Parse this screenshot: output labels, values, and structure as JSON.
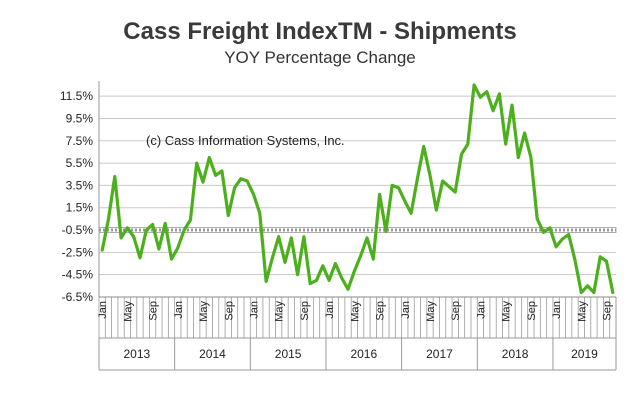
{
  "chart_data": {
    "type": "line",
    "title": "Cass Freight Index",
    "title_mark": "TM",
    "title_suffix": " - Shipments",
    "subtitle": "YOY Percentage Change",
    "annotation": "(c) Cass Information Systems, Inc.",
    "ylim": [
      -6.5,
      12.5
    ],
    "yticks": [
      "11.5%",
      "9.5%",
      "7.5%",
      "5.5%",
      "3.5%",
      "1.5%",
      "-0.5%",
      "-2.5%",
      "-4.5%",
      "-6.5%"
    ],
    "ytick_values": [
      11.5,
      9.5,
      7.5,
      5.5,
      3.5,
      1.5,
      -0.5,
      -2.5,
      -4.5,
      -6.5
    ],
    "reference_line": -0.5,
    "grid": true,
    "line_color": "#4caf1c",
    "years": [
      "2013",
      "2014",
      "2015",
      "2016",
      "2017",
      "2018",
      "2019"
    ],
    "month_labels": [
      "Jan",
      "May",
      "Sep"
    ],
    "series": [
      {
        "values": [
          -2.3,
          0.5,
          4.3,
          -1.2,
          -0.3,
          -1.1,
          -3.0,
          -0.5,
          0.0,
          -2.2,
          0.1,
          -3.1,
          -2.1,
          -0.5,
          0.4,
          5.5,
          3.8,
          6.0,
          4.4,
          4.8,
          0.8,
          3.3,
          4.1,
          3.9,
          2.7,
          1.0,
          -5.1,
          -3.0,
          -1.1,
          -3.4,
          -1.2,
          -4.5,
          -1.1,
          -5.3,
          -5.0,
          -3.7,
          -5.0,
          -3.5,
          -4.8,
          -5.8,
          -4.2,
          -2.8,
          -1.2,
          -3.1,
          2.7,
          -0.6,
          3.5,
          3.3,
          2.1,
          1.0,
          4.1,
          7.0,
          4.4,
          1.3,
          3.9,
          3.4,
          2.9,
          6.3,
          7.2,
          12.5,
          11.4,
          11.9,
          10.2,
          11.7,
          7.2,
          10.7,
          6.0,
          8.2,
          6.0,
          0.5,
          -0.7,
          -0.3,
          -2.0,
          -1.3,
          -0.9,
          -3.2,
          -6.1,
          -5.5,
          -6.1,
          -2.9,
          -3.3,
          -6.1
        ]
      }
    ]
  }
}
